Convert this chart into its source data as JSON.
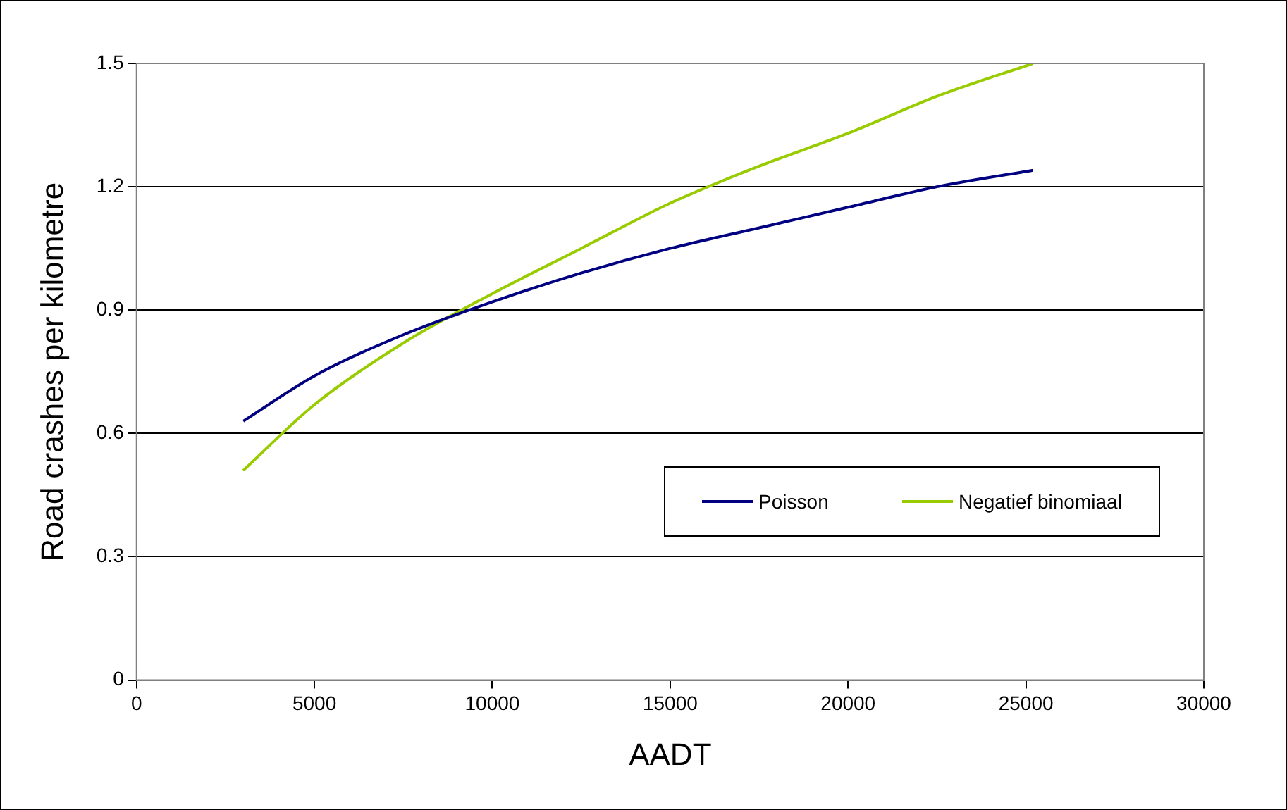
{
  "chart_data": {
    "type": "line",
    "xlabel": "AADT",
    "ylabel": "Road crashes per kilometre",
    "xlim": [
      0,
      30000
    ],
    "xticks": [
      0,
      5000,
      10000,
      15000,
      20000,
      25000,
      30000
    ],
    "ylim": [
      0,
      1.5
    ],
    "yticks": [
      0,
      0.3,
      0.6,
      0.9,
      1.2,
      1.5
    ],
    "x": [
      3000,
      5000,
      7500,
      10000,
      12500,
      15000,
      17500,
      20000,
      22500,
      25200
    ],
    "series": [
      {
        "name": "Poisson",
        "color": "#000080",
        "values": [
          0.63,
          0.74,
          0.84,
          0.92,
          0.99,
          1.05,
          1.1,
          1.15,
          1.2,
          1.24
        ]
      },
      {
        "name": "Negatief binomiaal",
        "color": "#99cc00",
        "values": [
          0.51,
          0.67,
          0.82,
          0.94,
          1.05,
          1.16,
          1.25,
          1.33,
          1.42,
          1.5
        ]
      }
    ],
    "grid": "y",
    "legend": "right",
    "marker": "none",
    "line_style": "solid"
  }
}
